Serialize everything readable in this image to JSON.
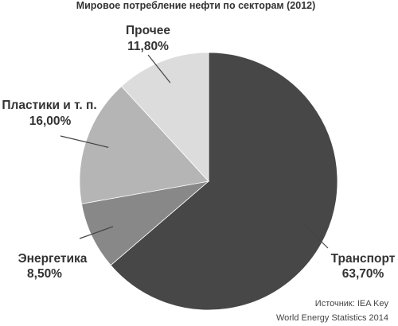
{
  "chart_data": {
    "type": "pie",
    "title": "Мировое потребление нефти по секторам (2012)",
    "slices": [
      {
        "label": "Транспорт",
        "value_label": "63,70%",
        "value": 63.7,
        "color": "#474747"
      },
      {
        "label": "Энергетика",
        "value_label": "8,50%",
        "value": 8.5,
        "color": "#888888"
      },
      {
        "label": "Пластики и т. п.",
        "value_label": "16,00%",
        "value": 16.0,
        "color": "#b5b5b5"
      },
      {
        "label": "Прочее",
        "value_label": "11,80%",
        "value": 11.8,
        "color": "#dcdcdc"
      }
    ],
    "start": "12 o'clock",
    "direction": "clockwise"
  },
  "source": {
    "line1": "Источник: IEA Key",
    "line2": "World Energy Statistics 2014"
  }
}
